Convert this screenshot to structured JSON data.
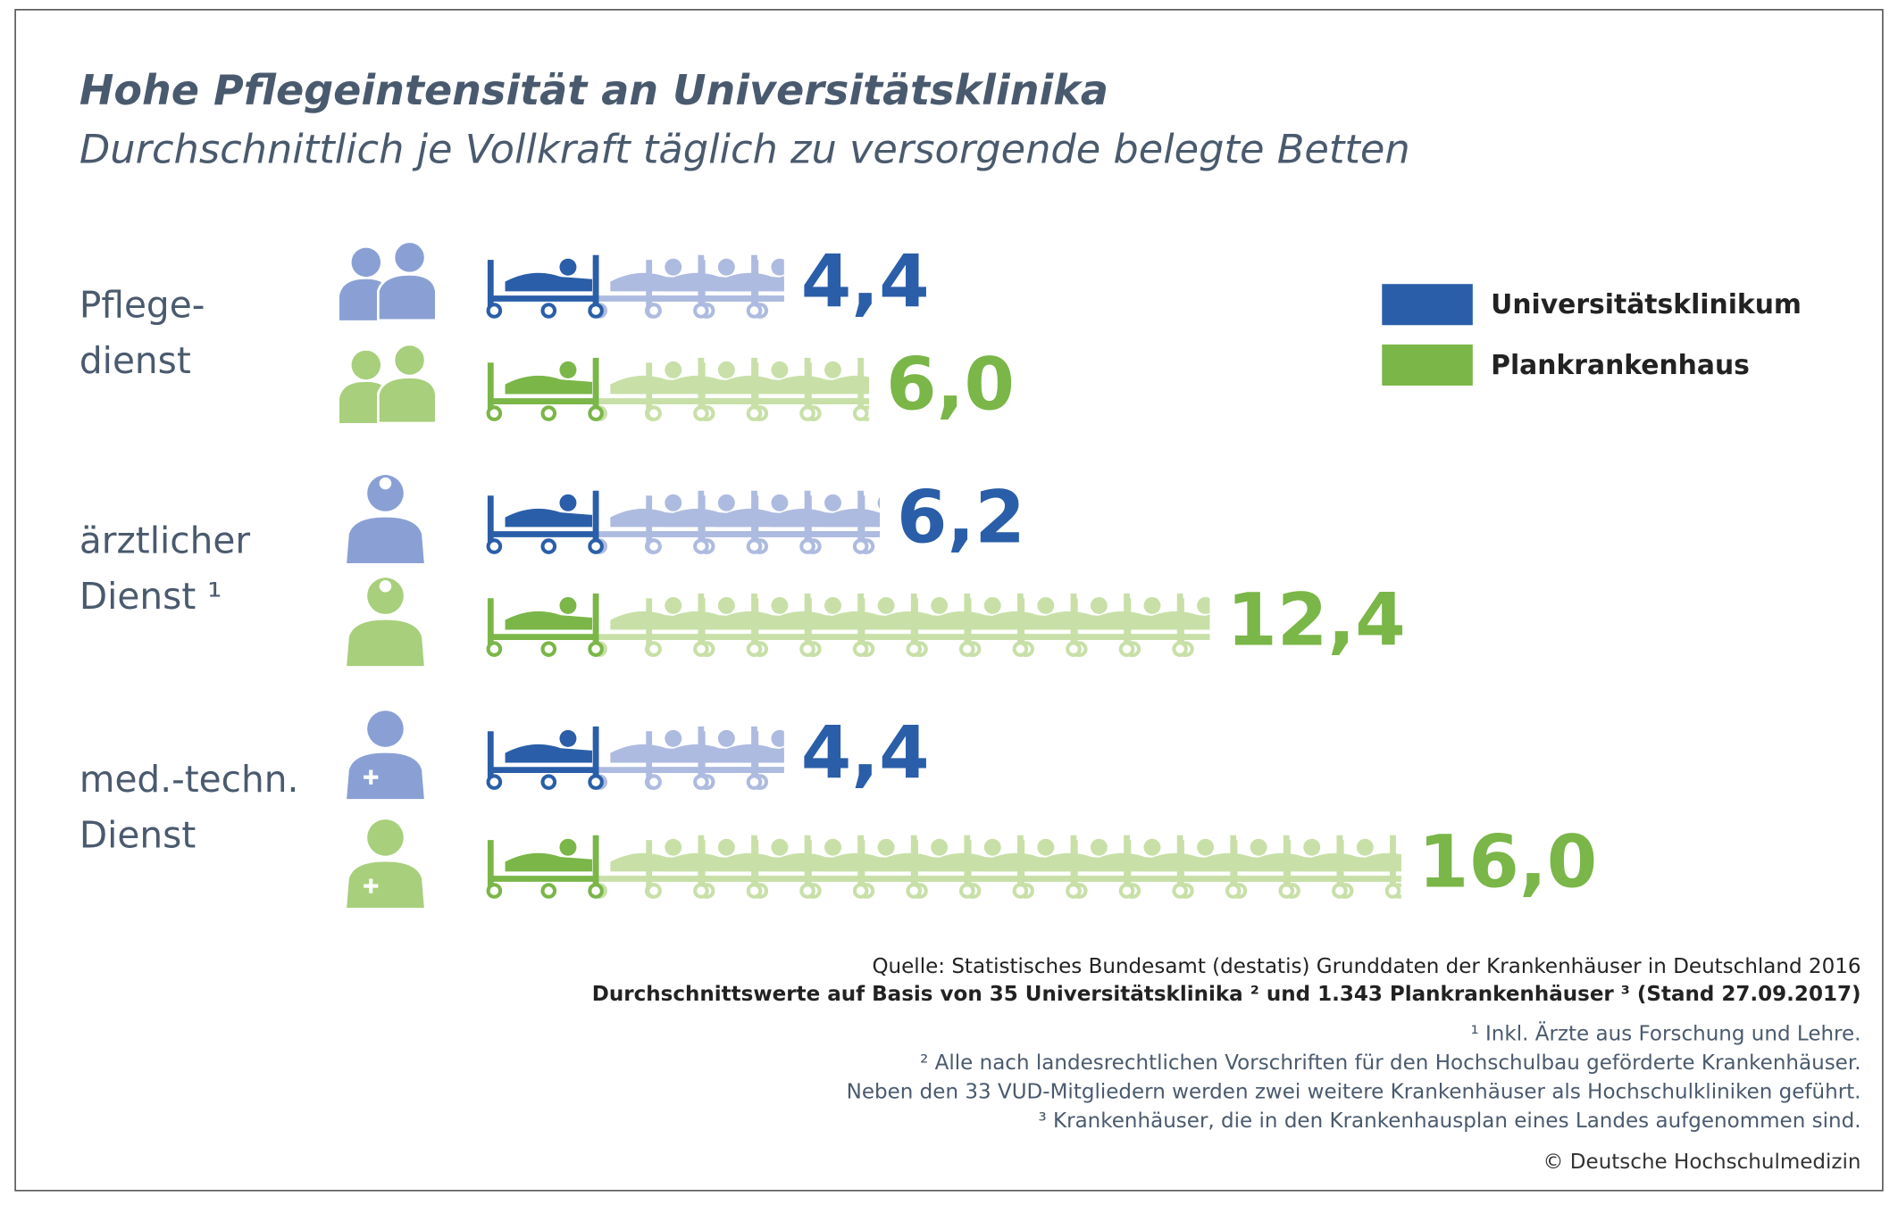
{
  "chart_data": {
    "type": "pictogram",
    "title": "Hohe Pflegeintensität an Universitätsklinika",
    "subtitle": "Durchschnittlich je Vollkraft täglich zu versorgende belegte Betten",
    "categories": [
      [
        "Pflege-",
        "dienst"
      ],
      [
        "ärztlicher",
        "Dienst ¹"
      ],
      [
        "med.-techn.",
        "Dienst"
      ]
    ],
    "series": [
      {
        "name": "Universitätsklinikum",
        "color": "#2a5ea8",
        "light_color": "#aebbe0",
        "values": [
          4.4,
          6.2,
          4.4
        ],
        "value_labels": [
          "4,4",
          "6,2",
          "4,4"
        ]
      },
      {
        "name": "Plankrankenhaus",
        "color": "#7ab648",
        "light_color": "#c8e0a8",
        "values": [
          6.0,
          12.4,
          16.0
        ],
        "value_labels": [
          "6,0",
          "12,4",
          "16,0"
        ]
      }
    ],
    "source": "Quelle: Statistisches Bundesamt (destatis) Grunddaten der Krankenhäuser in Deutschland 2016",
    "basis": "Durchschnittswerte auf Basis von 35 Universitätsklinika ² und 1.343 Plankrankenhäuser ³ (Stand 27.09.2017)",
    "footnotes": [
      "¹ Inkl. Ärzte aus Forschung und Lehre.",
      "² Alle nach landesrechtlichen Vorschriften für den Hochschulbau geförderte Krankenhäuser.",
      "Neben den 33 VUD-Mitgliedern werden zwei weitere Krankenhäuser als Hochschulkliniken geführt.",
      "³ Krankenhäuser, die in den Krankenhausplan eines Landes aufgenommen sind."
    ],
    "copyright": "© Deutsche Hochschulmedizin"
  }
}
